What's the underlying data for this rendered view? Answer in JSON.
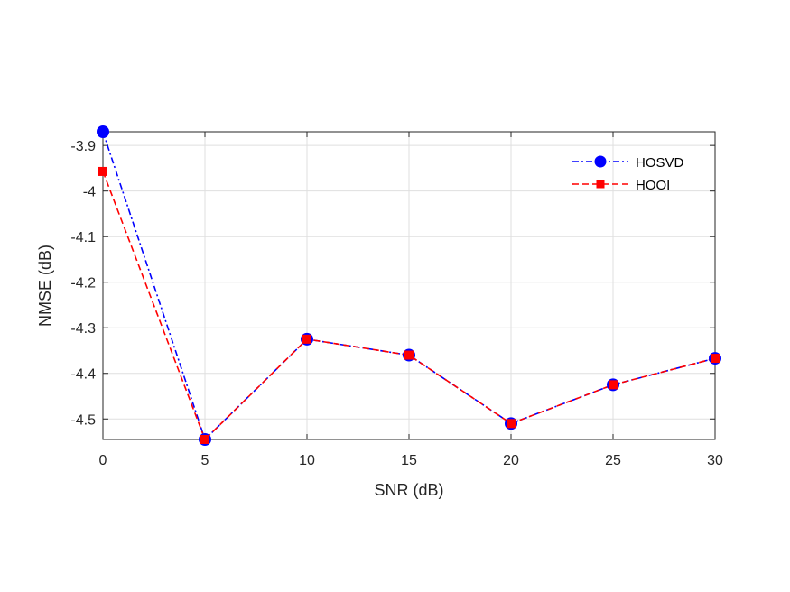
{
  "chart_data": {
    "type": "line",
    "title": "",
    "xlabel": "SNR (dB)",
    "ylabel": "NMSE (dB)",
    "x": [
      0,
      5,
      10,
      15,
      20,
      25,
      30
    ],
    "xlim": [
      0,
      30
    ],
    "ylim": [
      -4.545,
      -3.87
    ],
    "xticks": [
      0,
      5,
      10,
      15,
      20,
      25,
      30
    ],
    "yticks": [
      -4.5,
      -4.4,
      -4.3,
      -4.2,
      -4.1,
      -4,
      -3.9
    ],
    "xtick_labels": [
      "0",
      "5",
      "10",
      "15",
      "20",
      "25",
      "30"
    ],
    "ytick_labels": [
      "-4.5",
      "-4.4",
      "-4.3",
      "-4.2",
      "-4.1",
      "-4",
      "-3.9"
    ],
    "grid": true,
    "legend_position": "top-right",
    "series": [
      {
        "name": "HOSVD",
        "values": [
          -3.87,
          -4.545,
          -4.325,
          -4.36,
          -4.51,
          -4.425,
          -4.367
        ],
        "color": "#0000ff",
        "line_style": "dash-dot",
        "marker": "circle"
      },
      {
        "name": "HOOI",
        "values": [
          -3.957,
          -4.545,
          -4.325,
          -4.36,
          -4.51,
          -4.425,
          -4.367
        ],
        "color": "#ff0000",
        "line_style": "dashed",
        "marker": "square"
      }
    ]
  }
}
